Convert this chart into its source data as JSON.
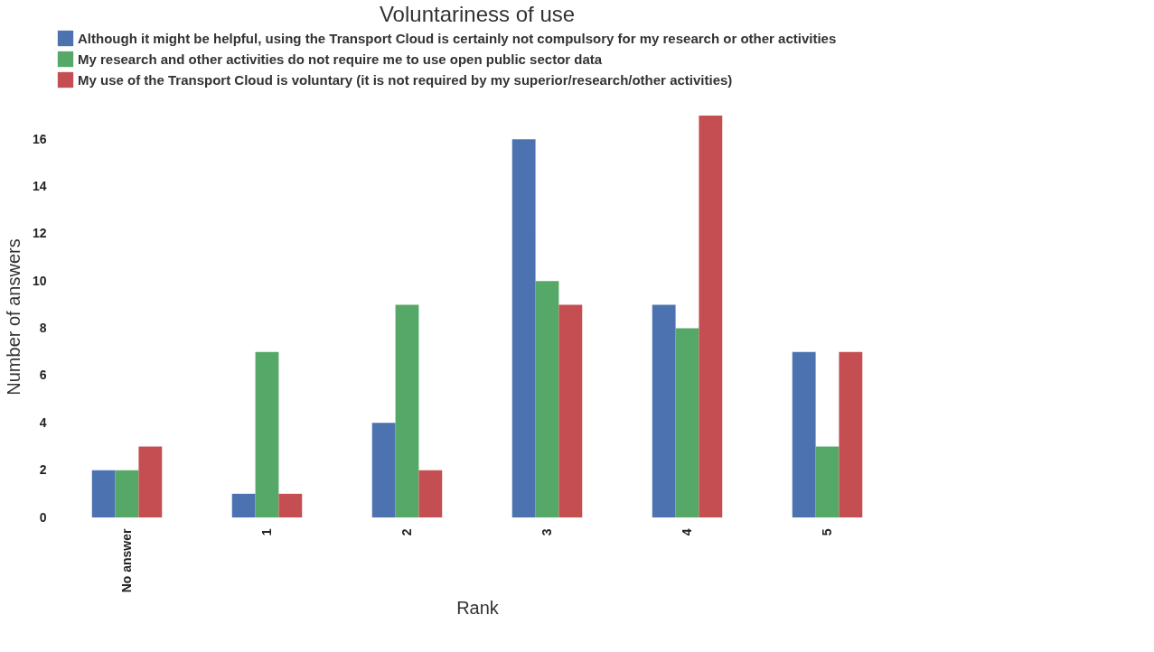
{
  "chart_data": {
    "type": "bar",
    "title": "Voluntariness of use",
    "xlabel": "Rank",
    "ylabel": "Number of answers",
    "categories": [
      "No answer",
      "1",
      "2",
      "3",
      "4",
      "5"
    ],
    "series": [
      {
        "name": "Although it might be helpful, using the Transport Cloud is certainly not compulsory for my research or other activities",
        "color": "#4c72b0",
        "values": [
          2,
          1,
          4,
          16,
          9,
          7
        ]
      },
      {
        "name": "My research and other activities do not require me to use open public sector data",
        "color": "#55a868",
        "values": [
          2,
          7,
          9,
          10,
          8,
          3
        ]
      },
      {
        "name": "My use of the Transport Cloud is voluntary (it is not required by my superior/research/other activities)",
        "color": "#c44e52",
        "values": [
          3,
          1,
          2,
          9,
          17,
          7
        ]
      }
    ],
    "ylim": [
      0,
      17
    ],
    "yticks": [
      0,
      2,
      4,
      6,
      8,
      10,
      12,
      14,
      16
    ],
    "grid": false,
    "legend": "top"
  }
}
